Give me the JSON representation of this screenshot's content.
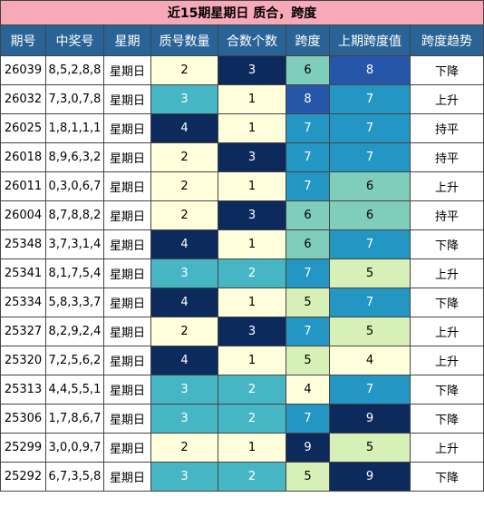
{
  "title": "近15期星期日 质合，跨度",
  "headers": [
    "期号",
    "中奖号",
    "星期",
    "质号数量",
    "合数个数",
    "跨度",
    "上期跨度值",
    "跨度趋势"
  ],
  "colors": {
    "title_bg": "#f7a9b8",
    "header_bg": "#2a6496",
    "prime_2": "#ffffdc",
    "prime_3": "#47b6c4",
    "prime_4": "#0c2a5c",
    "composite_1": "#ffffdc",
    "composite_2": "#47b6c4",
    "composite_3": "#0c2a5c",
    "span_4": "#ffffdc",
    "span_5": "#d6f0b8",
    "span_6": "#7fcdbb",
    "span_7": "#2496c4",
    "span_8": "#2556a8",
    "span_9": "#0c2a5c",
    "prev_4": "#ffffdc",
    "prev_5": "#d6f0b8",
    "prev_6": "#7fcdbb",
    "prev_7": "#2496c4",
    "prev_8": "#2556a8",
    "prev_9": "#0c2a5c"
  },
  "rows": [
    {
      "issue": "26039",
      "digits": "8,5,2,8,8",
      "day": "星期日",
      "prime": 2,
      "composite": 3,
      "span": 6,
      "prev_span": 8,
      "trend": "下降"
    },
    {
      "issue": "26032",
      "digits": "7,3,0,7,8",
      "day": "星期日",
      "prime": 3,
      "composite": 1,
      "span": 8,
      "prev_span": 7,
      "trend": "上升"
    },
    {
      "issue": "26025",
      "digits": "1,8,1,1,1",
      "day": "星期日",
      "prime": 4,
      "composite": 1,
      "span": 7,
      "prev_span": 7,
      "trend": "持平"
    },
    {
      "issue": "26018",
      "digits": "8,9,6,3,2",
      "day": "星期日",
      "prime": 2,
      "composite": 3,
      "span": 7,
      "prev_span": 7,
      "trend": "持平"
    },
    {
      "issue": "26011",
      "digits": "0,3,0,6,7",
      "day": "星期日",
      "prime": 2,
      "composite": 1,
      "span": 7,
      "prev_span": 6,
      "trend": "上升"
    },
    {
      "issue": "26004",
      "digits": "8,7,8,8,2",
      "day": "星期日",
      "prime": 2,
      "composite": 3,
      "span": 6,
      "prev_span": 6,
      "trend": "持平"
    },
    {
      "issue": "25348",
      "digits": "3,7,3,1,4",
      "day": "星期日",
      "prime": 4,
      "composite": 1,
      "span": 6,
      "prev_span": 7,
      "trend": "下降"
    },
    {
      "issue": "25341",
      "digits": "8,1,7,5,4",
      "day": "星期日",
      "prime": 3,
      "composite": 2,
      "span": 7,
      "prev_span": 5,
      "trend": "上升"
    },
    {
      "issue": "25334",
      "digits": "5,8,3,3,7",
      "day": "星期日",
      "prime": 4,
      "composite": 1,
      "span": 5,
      "prev_span": 7,
      "trend": "下降"
    },
    {
      "issue": "25327",
      "digits": "8,2,9,2,4",
      "day": "星期日",
      "prime": 2,
      "composite": 3,
      "span": 7,
      "prev_span": 5,
      "trend": "上升"
    },
    {
      "issue": "25320",
      "digits": "7,2,5,6,2",
      "day": "星期日",
      "prime": 4,
      "composite": 1,
      "span": 5,
      "prev_span": 4,
      "trend": "上升"
    },
    {
      "issue": "25313",
      "digits": "4,4,5,5,1",
      "day": "星期日",
      "prime": 3,
      "composite": 2,
      "span": 4,
      "prev_span": 7,
      "trend": "下降"
    },
    {
      "issue": "25306",
      "digits": "1,7,8,6,7",
      "day": "星期日",
      "prime": 3,
      "composite": 2,
      "span": 7,
      "prev_span": 9,
      "trend": "下降"
    },
    {
      "issue": "25299",
      "digits": "3,0,0,9,7",
      "day": "星期日",
      "prime": 2,
      "composite": 1,
      "span": 9,
      "prev_span": 5,
      "trend": "上升"
    },
    {
      "issue": "25292",
      "digits": "6,7,3,5,8",
      "day": "星期日",
      "prime": 3,
      "composite": 2,
      "span": 5,
      "prev_span": 9,
      "trend": "下降"
    }
  ]
}
